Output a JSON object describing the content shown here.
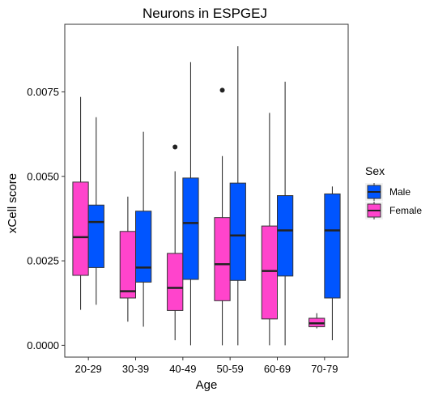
{
  "chart_data": {
    "type": "boxplot",
    "title": "Neurons in ESPGEJ",
    "xlabel": "Age",
    "ylabel": "xCell score",
    "categories": [
      "20-29",
      "30-39",
      "40-49",
      "50-59",
      "60-69",
      "70-79"
    ],
    "ylim": [
      -0.00035,
      0.0095
    ],
    "yticks": [
      0.0,
      0.0025,
      0.005,
      0.0075
    ],
    "ytick_labels": [
      "0.0000",
      "0.0025",
      "0.0050",
      "0.0075"
    ],
    "grid": false,
    "legend": {
      "title": "Sex",
      "placement": "right",
      "entries": [
        "Male",
        "Female"
      ]
    },
    "series": [
      {
        "name": "Female",
        "color": "#ff44cc",
        "boxes": [
          {
            "min": 0.00105,
            "q1": 0.00207,
            "median": 0.0032,
            "q3": 0.00483,
            "max": 0.00735,
            "outliers": []
          },
          {
            "min": 0.0007,
            "q1": 0.0014,
            "median": 0.0016,
            "q3": 0.00337,
            "max": 0.0044,
            "outliers": []
          },
          {
            "min": 0.00015,
            "q1": 0.00103,
            "median": 0.0017,
            "q3": 0.00272,
            "max": 0.00515,
            "outliers": [
              0.00587
            ]
          },
          {
            "min": 0.0,
            "q1": 0.00132,
            "median": 0.0024,
            "q3": 0.00378,
            "max": 0.0056,
            "outliers": [
              0.00755
            ]
          },
          {
            "min": 0.0,
            "q1": 0.00078,
            "median": 0.0022,
            "q3": 0.00353,
            "max": 0.00688,
            "outliers": []
          },
          {
            "min": 0.0005,
            "q1": 0.00055,
            "median": 0.00065,
            "q3": 0.0008,
            "max": 0.00095,
            "outliers": []
          }
        ]
      },
      {
        "name": "Male",
        "color": "#0055ff",
        "boxes": [
          {
            "min": 0.0012,
            "q1": 0.0023,
            "median": 0.00365,
            "q3": 0.00415,
            "max": 0.00675,
            "outliers": []
          },
          {
            "min": 0.00055,
            "q1": 0.00187,
            "median": 0.0023,
            "q3": 0.00397,
            "max": 0.00632,
            "outliers": []
          },
          {
            "min": 0.0,
            "q1": 0.00195,
            "median": 0.00362,
            "q3": 0.00495,
            "max": 0.00838,
            "outliers": []
          },
          {
            "min": 0.0,
            "q1": 0.00192,
            "median": 0.00325,
            "q3": 0.0048,
            "max": 0.00885,
            "outliers": []
          },
          {
            "min": 0.0,
            "q1": 0.00205,
            "median": 0.0034,
            "q3": 0.00443,
            "max": 0.0078,
            "outliers": []
          },
          {
            "min": 0.00015,
            "q1": 0.0014,
            "median": 0.0034,
            "q3": 0.00448,
            "max": 0.0047,
            "outliers": []
          }
        ]
      }
    ]
  }
}
